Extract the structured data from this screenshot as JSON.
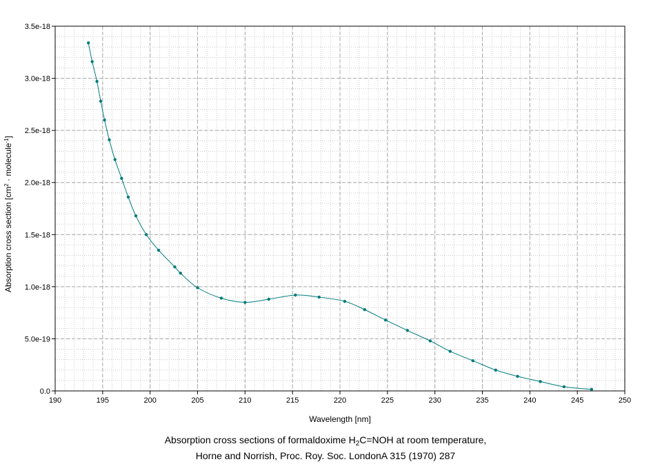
{
  "chart_data": {
    "type": "line",
    "xlabel": "Wavelength [nm]",
    "ylabel": {
      "part1": "Absorption cross section [cm",
      "sup1": "2",
      "part2": " · molecule",
      "sup2": "-1",
      "part3": "]"
    },
    "xlim": [
      190,
      250
    ],
    "ylim": [
      0,
      3.5e-18
    ],
    "xticks": [
      190,
      195,
      200,
      205,
      210,
      215,
      220,
      225,
      230,
      235,
      240,
      245,
      250
    ],
    "xtick_labels": [
      "190",
      "195",
      "200",
      "205",
      "210",
      "215",
      "220",
      "225",
      "230",
      "235",
      "240",
      "245",
      "250"
    ],
    "yticks": [
      0,
      5e-19,
      1e-18,
      1.5e-18,
      2e-18,
      2.5e-18,
      3e-18,
      3.5e-18
    ],
    "ytick_labels": [
      "0.0",
      "5.0e-19",
      "1.0e-18",
      "1.5e-18",
      "2.0e-18",
      "2.5e-18",
      "3.0e-18",
      "3.5e-18"
    ],
    "grid": true,
    "color": "#007b7b",
    "series": [
      {
        "x": [
          193.5,
          193.9,
          194.4,
          194.8,
          195.2,
          195.7,
          196.3,
          197.0,
          197.7,
          198.5,
          199.6,
          200.9,
          202.6,
          203.2,
          205.0,
          207.5,
          210.0,
          212.5,
          215.3,
          217.8,
          220.5,
          222.6,
          224.8,
          227.1,
          229.5,
          231.6,
          234.0,
          236.4,
          238.7,
          241.1,
          243.6,
          246.5
        ],
        "y": [
          3.34e-18,
          3.16e-18,
          2.97e-18,
          2.78e-18,
          2.6e-18,
          2.41e-18,
          2.22e-18,
          2.04e-18,
          1.86e-18,
          1.68e-18,
          1.5e-18,
          1.35e-18,
          1.19e-18,
          1.13e-18,
          9.9e-19,
          8.9e-19,
          8.5e-19,
          8.8e-19,
          9.2e-19,
          9e-19,
          8.6e-19,
          7.8e-19,
          6.8e-19,
          5.8e-19,
          4.8e-19,
          3.8e-19,
          2.9e-19,
          2e-19,
          1.4e-19,
          9e-20,
          4e-20,
          1.5e-20
        ]
      }
    ]
  },
  "caption": {
    "line1_part1": "Absorption cross sections of formaldoxime H",
    "line1_sub": "2",
    "line1_part2": "C=NOH at room temperature,",
    "line2": "Horne and Norrish, Proc. Roy. Soc. LondonA 315 (1970) 287"
  }
}
